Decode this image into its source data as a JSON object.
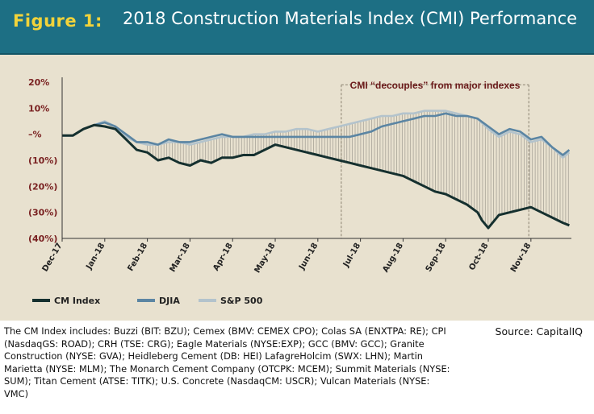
{
  "figure": {
    "label": "Figure 1:",
    "title": "2018 Construction Materials Index (CMI) Performance"
  },
  "caption": "The CM Index includes: Buzzi (BIT: BZU); Cemex (BMV: CEMEX CPO); Colas SA (ENXTPA: RE); CPI (NasdaqGS: ROAD); CRH (TSE: CRG); Eagle Materials (NYSE:EXP); GCC (BMV: GCC); Granite Construction (NYSE: GVA); Heidleberg Cement (DB: HEI) LafagreHolcim (SWX: LHN); Martin Marietta (NYSE: MLM); The Monarch Cement Company (OTCPK: MCEM); Summit Materials (NYSE: SUM); Titan Cement (ATSE: TITK); U.S. Concrete (NasdaqCM: USCR); Vulcan Materials (NYSE: VMC)",
  "source": "Source: CapitalIQ",
  "chart_data": {
    "type": "line",
    "title": "2018 Construction Materials Index (CMI) Performance",
    "xlabel": "",
    "ylabel": "",
    "categories": [
      "Dec-17",
      "Jan-18",
      "Feb-18",
      "Mar-18",
      "Apr-18",
      "May-18",
      "Jun-18",
      "Jul-18",
      "Aug-18",
      "Sep-18",
      "Oct-18",
      "Nov-18"
    ],
    "x_range": [
      0,
      11.95
    ],
    "ylim": [
      -40,
      20
    ],
    "yticks": [
      20,
      10,
      0,
      -10,
      -20,
      -30,
      -40
    ],
    "ytick_labels": [
      "20%",
      "10%",
      "–%",
      "(10%)",
      "(20%)",
      "(30%)",
      "(40%)"
    ],
    "legend_position": "bottom-left",
    "grid": false,
    "annotation": {
      "text": "CMI “decouples” from major indexes",
      "x_start": 6.55,
      "x_end": 10.95
    },
    "series": [
      {
        "name": "CM Index",
        "color": "#15302f",
        "x": [
          0,
          0.25,
          0.5,
          0.75,
          1,
          1.25,
          1.5,
          1.75,
          2,
          2.25,
          2.5,
          2.75,
          3,
          3.25,
          3.5,
          3.75,
          4,
          4.25,
          4.5,
          4.75,
          5,
          5.25,
          5.5,
          5.75,
          6,
          6.25,
          6.5,
          6.75,
          7,
          7.25,
          7.5,
          7.75,
          8,
          8.25,
          8.5,
          8.75,
          9,
          9.25,
          9.5,
          9.75,
          9.85,
          10,
          10.25,
          10.5,
          10.75,
          11,
          11.25,
          11.5,
          11.75,
          11.9
        ],
        "values": [
          -0.5,
          -0.5,
          2,
          3.5,
          3,
          2,
          -2,
          -6,
          -7,
          -10,
          -9,
          -11,
          -12,
          -10,
          -11,
          -9,
          -9,
          -8,
          -8,
          -6,
          -4,
          -5,
          -6,
          -7,
          -8,
          -9,
          -10,
          -11,
          -12,
          -13,
          -14,
          -15,
          -16,
          -18,
          -20,
          -22,
          -23,
          -25,
          -27,
          -30,
          -33,
          -36,
          -31,
          -30,
          -29,
          -28,
          -30,
          -32,
          -34,
          -35
        ]
      },
      {
        "name": "DJIA",
        "color": "#5b85a3",
        "x": [
          0,
          0.25,
          0.5,
          0.75,
          1,
          1.25,
          1.5,
          1.75,
          2,
          2.25,
          2.5,
          2.75,
          3,
          3.25,
          3.5,
          3.75,
          4,
          4.25,
          4.5,
          4.75,
          5,
          5.25,
          5.5,
          5.75,
          6,
          6.25,
          6.5,
          6.75,
          7,
          7.25,
          7.5,
          7.75,
          8,
          8.25,
          8.5,
          8.75,
          9,
          9.25,
          9.5,
          9.75,
          10,
          10.25,
          10.5,
          10.75,
          11,
          11.25,
          11.5,
          11.75,
          11.9
        ],
        "values": [
          -0.5,
          -0.5,
          2,
          3.5,
          4.5,
          3,
          0,
          -3,
          -3,
          -4,
          -2,
          -3,
          -3,
          -2,
          -1,
          0,
          -1,
          -1,
          -1,
          -1,
          -1,
          -1,
          -1,
          -1,
          -1,
          -1,
          -1,
          -1,
          0,
          1,
          3,
          4,
          5,
          6,
          7,
          7,
          8,
          7,
          7,
          6,
          3,
          0,
          2,
          1,
          -2,
          -1,
          -5,
          -8,
          -6
        ]
      },
      {
        "name": "S&P 500",
        "color": "#b3c3cc",
        "x": [
          0,
          0.25,
          0.5,
          0.75,
          1,
          1.25,
          1.5,
          1.75,
          2,
          2.25,
          2.5,
          2.75,
          3,
          3.25,
          3.5,
          3.75,
          4,
          4.25,
          4.5,
          4.75,
          5,
          5.25,
          5.5,
          5.75,
          6,
          6.25,
          6.5,
          6.75,
          7,
          7.25,
          7.5,
          7.75,
          8,
          8.25,
          8.5,
          8.75,
          9,
          9.25,
          9.5,
          9.75,
          10,
          10.25,
          10.5,
          10.75,
          11,
          11.25,
          11.5,
          11.75,
          11.9
        ],
        "values": [
          -0.5,
          -0.5,
          2,
          3.5,
          5,
          3,
          -1,
          -3,
          -4,
          -4,
          -3,
          -3,
          -4,
          -3,
          -2,
          -1,
          -1,
          -1,
          0,
          0,
          1,
          1,
          2,
          2,
          1,
          2,
          3,
          4,
          5,
          6,
          7,
          7,
          8,
          8,
          9,
          9,
          9,
          8,
          7,
          6,
          2,
          -1,
          1,
          0,
          -3,
          -2,
          -5,
          -9,
          -7
        ]
      }
    ]
  }
}
